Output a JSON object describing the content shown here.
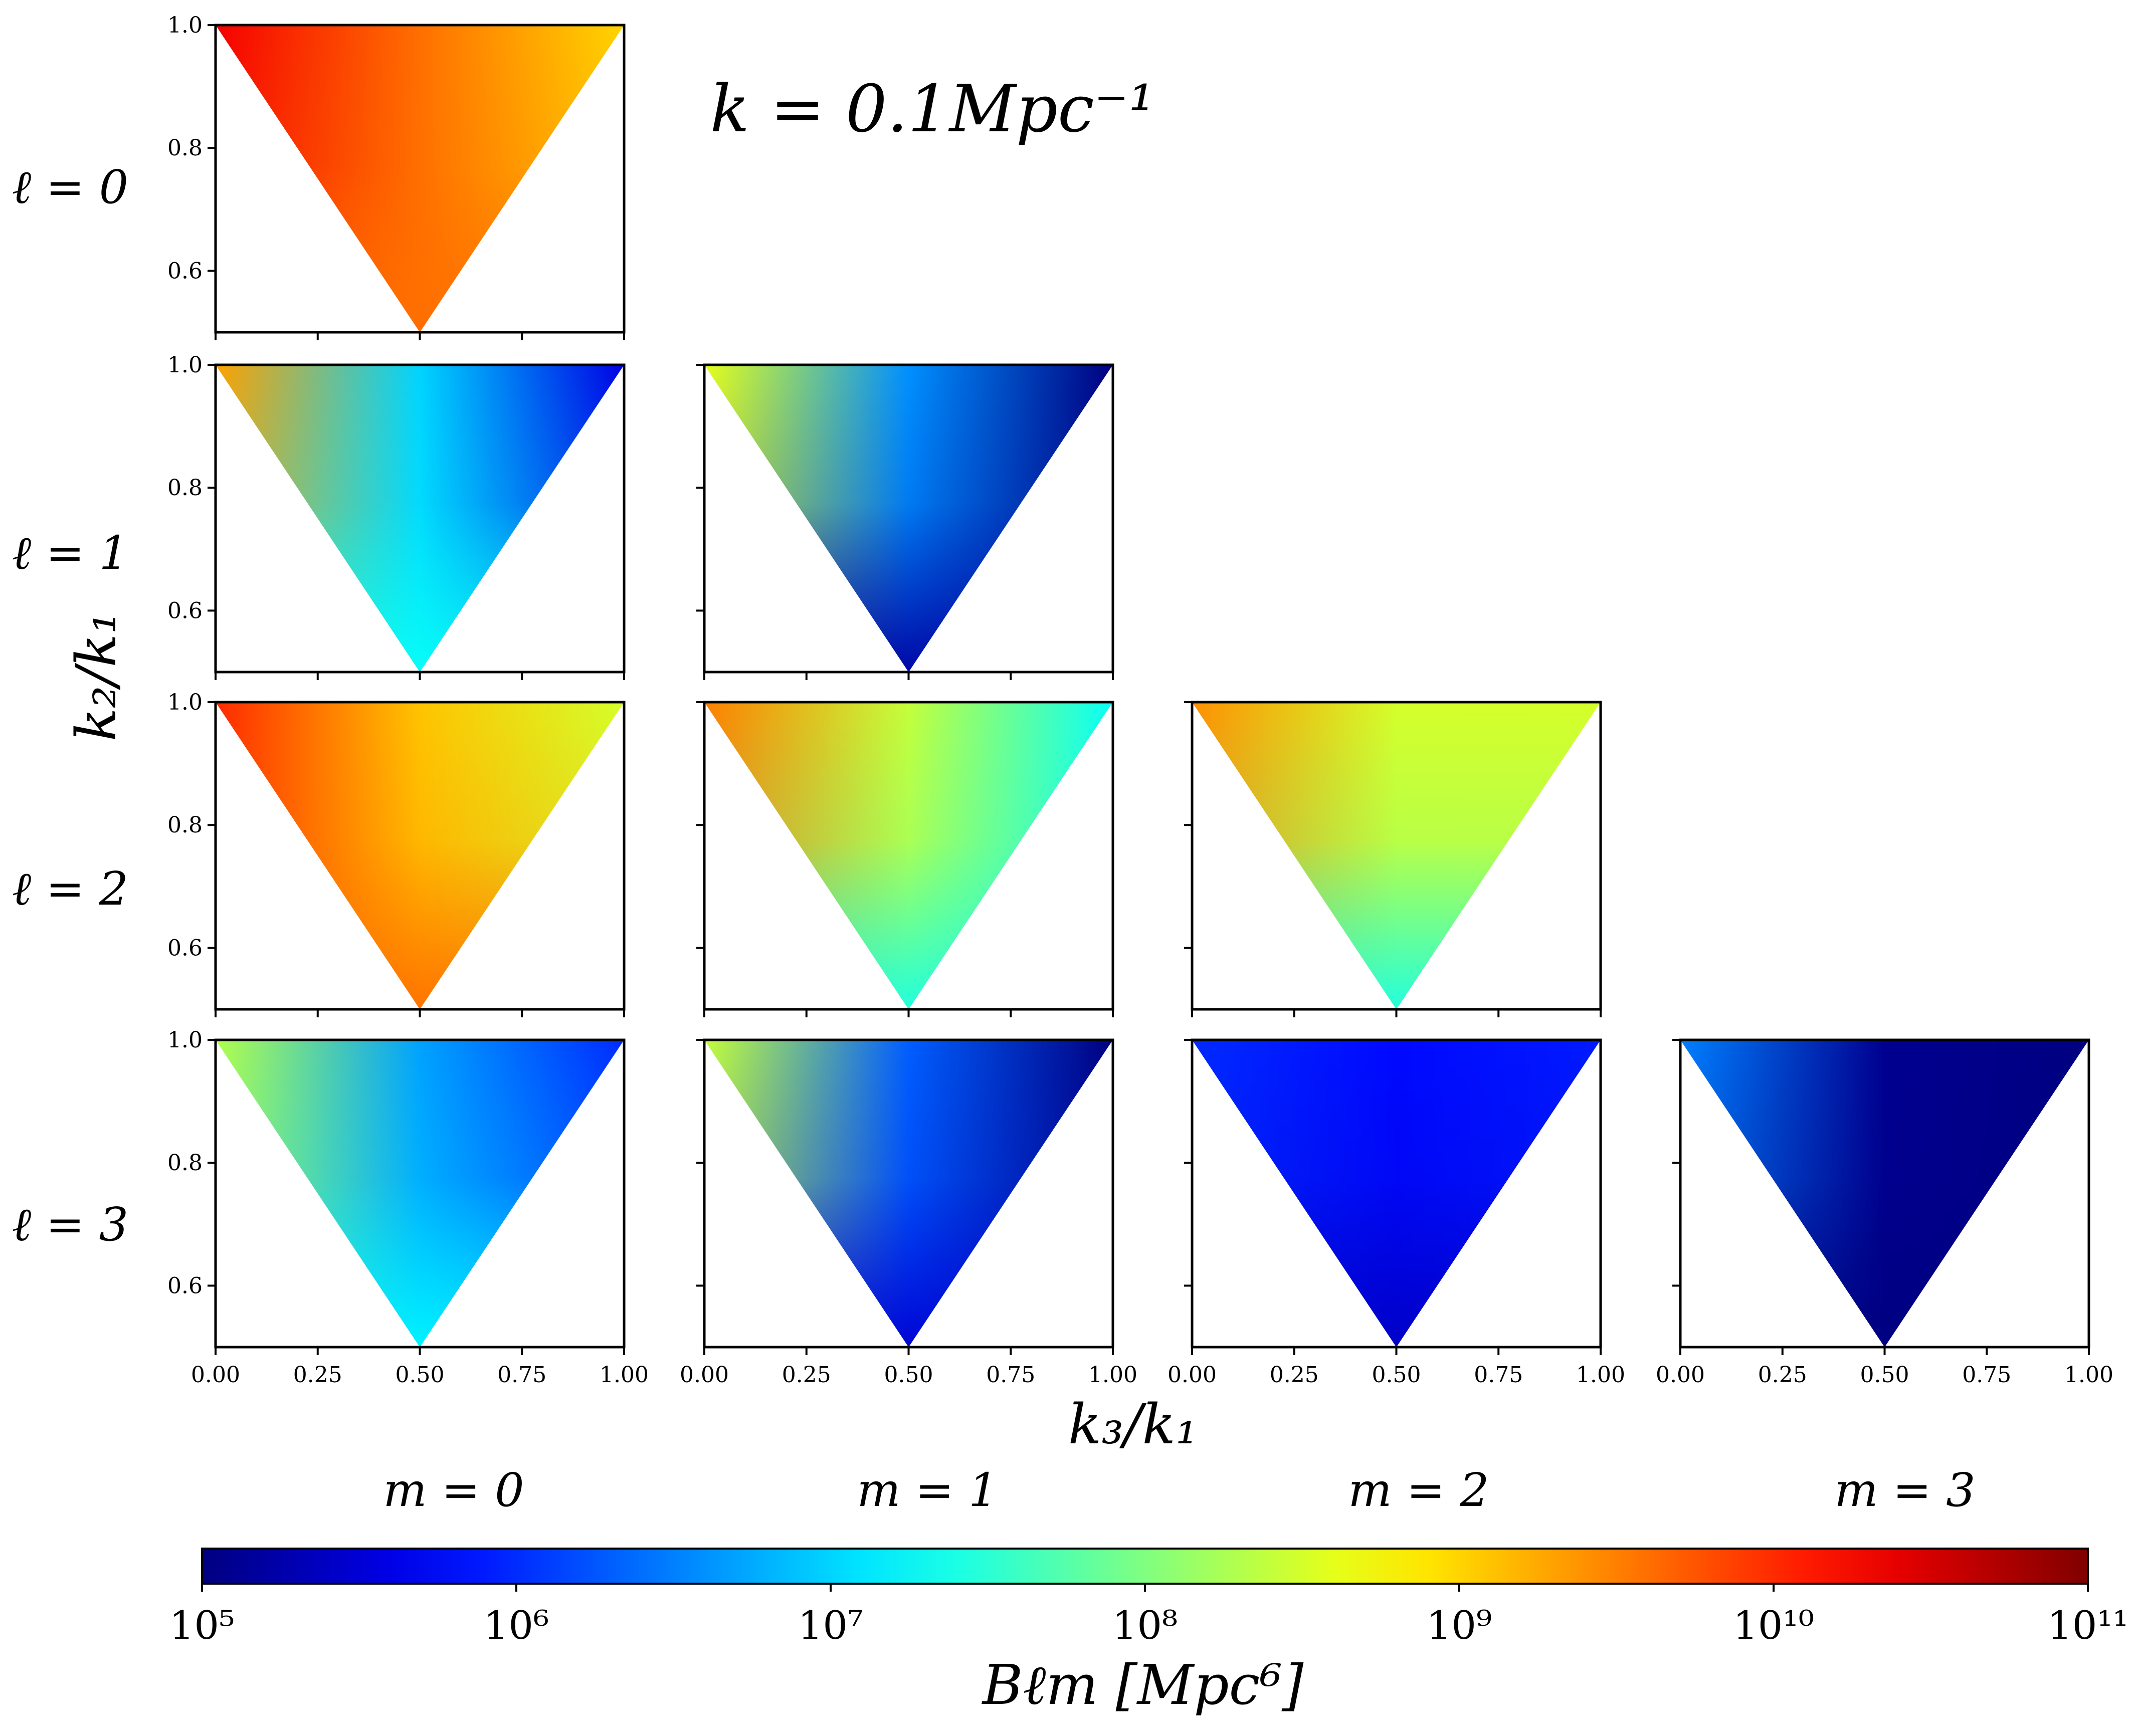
{
  "figure": {
    "title": "k = 0.1Mpc⁻¹",
    "y_axis_label": "k₂/k₁",
    "x_axis_label": "k₃/k₁",
    "row_labels": [
      "ℓ = 0",
      "ℓ = 1",
      "ℓ = 2",
      "ℓ = 3"
    ],
    "column_labels": [
      "m = 0",
      "m = 1",
      "m = 2",
      "m = 3"
    ]
  },
  "colorbar": {
    "label": "Bℓm [Mpc⁶]",
    "scale": "log",
    "range": [
      100000,
      100000000000
    ],
    "colormap": "jet",
    "tick_labels": [
      "10⁵",
      "10⁶",
      "10⁷",
      "10⁸",
      "10⁹",
      "10¹⁰",
      "10¹¹"
    ]
  },
  "chart_data": {
    "type": "heatmap",
    "title": "k = 0.1Mpc⁻¹",
    "xlabel": "k₃/k₁",
    "ylabel": "k₂/k₁",
    "xlim": [
      0,
      1
    ],
    "ylim": [
      0.5,
      1
    ],
    "x_ticks": [
      "0.00",
      "0.25",
      "0.50",
      "0.75",
      "1.00"
    ],
    "y_ticks": [
      "0.6",
      "0.8",
      "1.0"
    ],
    "domain": "triangle with vertices (0,1), (1,1), (0.5,0.5)",
    "value_scale": "log10 of B_lm in Mpc^6",
    "panels": [
      {
        "l": 0,
        "m": 0,
        "log10_values": {
          "top_left": 10.3,
          "top_right": 9.0,
          "bottom": 9.6,
          "center": 9.6
        }
      },
      {
        "l": 1,
        "m": 0,
        "log10_values": {
          "top_left": 9.3,
          "top_right": 5.6,
          "bottom": 7.3,
          "center": 7.0
        }
      },
      {
        "l": 1,
        "m": 1,
        "log10_values": {
          "top_left": 8.6,
          "top_right": 5.0,
          "bottom": 5.2,
          "center": 6.6
        }
      },
      {
        "l": 2,
        "m": 0,
        "log10_values": {
          "top_left": 10.0,
          "top_right": 8.5,
          "bottom": 9.6,
          "center": 9.1
        }
      },
      {
        "l": 2,
        "m": 1,
        "log10_values": {
          "top_left": 9.5,
          "top_right": 7.3,
          "bottom": 7.4,
          "center": 8.4
        }
      },
      {
        "l": 2,
        "m": 2,
        "log10_values": {
          "top_left": 9.4,
          "top_right": 8.5,
          "bottom": 7.4,
          "center": 8.5
        }
      },
      {
        "l": 3,
        "m": 0,
        "log10_values": {
          "top_left": 8.3,
          "top_right": 6.0,
          "bottom": 7.2,
          "center": 6.7
        }
      },
      {
        "l": 3,
        "m": 1,
        "log10_values": {
          "top_left": 8.4,
          "top_right": 5.0,
          "bottom": 5.5,
          "center": 6.3
        }
      },
      {
        "l": 3,
        "m": 2,
        "log10_values": {
          "top_left": 6.0,
          "top_right": 5.9,
          "bottom": 5.4,
          "center": 5.8
        }
      },
      {
        "l": 3,
        "m": 3,
        "log10_values": {
          "top_left": 6.5,
          "top_right": 5.0,
          "bottom": 5.0,
          "center": 5.1
        }
      }
    ]
  }
}
